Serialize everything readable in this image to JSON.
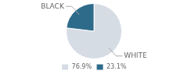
{
  "chart_data": {
    "type": "pie",
    "categories": [
      "76.9%",
      "23.1%"
    ],
    "values": [
      76.9,
      23.1
    ],
    "colors": [
      "#d6dce4",
      "#2e6b8a"
    ],
    "annotations": [
      "WHITE",
      "BLACK"
    ],
    "legend": "bottom"
  }
}
